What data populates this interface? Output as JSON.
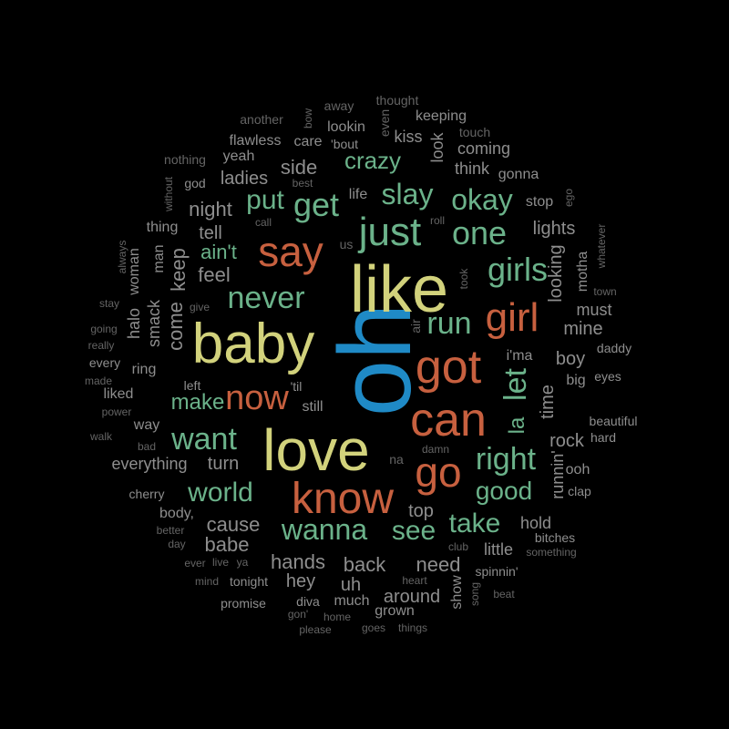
{
  "colors": {
    "background": "#000000",
    "blue": "#1f8ac6",
    "yellow": "#d2d27c",
    "orange": "#c7603f",
    "green": "#6bb28a",
    "gray": "#8e8e8e",
    "dark_gray": "#646464"
  },
  "words": [
    {
      "text": "oh",
      "tier": "blue"
    },
    {
      "text": "like",
      "tier": "yellow"
    },
    {
      "text": "baby",
      "tier": "yellow"
    },
    {
      "text": "love",
      "tier": "yellow"
    },
    {
      "text": "say",
      "tier": "orange"
    },
    {
      "text": "got",
      "tier": "orange"
    },
    {
      "text": "can",
      "tier": "orange"
    },
    {
      "text": "know",
      "tier": "orange"
    },
    {
      "text": "go",
      "tier": "orange"
    },
    {
      "text": "girl",
      "tier": "orange"
    },
    {
      "text": "now",
      "tier": "orange"
    },
    {
      "text": "let",
      "tier": "green"
    },
    {
      "text": "just",
      "tier": "green"
    },
    {
      "text": "never",
      "tier": "green"
    },
    {
      "text": "get",
      "tier": "green"
    },
    {
      "text": "put",
      "tier": "green"
    },
    {
      "text": "slay",
      "tier": "green"
    },
    {
      "text": "okay",
      "tier": "green"
    },
    {
      "text": "one",
      "tier": "green"
    },
    {
      "text": "girls",
      "tier": "green"
    },
    {
      "text": "run",
      "tier": "green"
    },
    {
      "text": "want",
      "tier": "green"
    },
    {
      "text": "right",
      "tier": "green"
    },
    {
      "text": "world",
      "tier": "green"
    },
    {
      "text": "wanna",
      "tier": "green"
    },
    {
      "text": "take",
      "tier": "green"
    },
    {
      "text": "good",
      "tier": "green"
    },
    {
      "text": "see",
      "tier": "green"
    },
    {
      "text": "make",
      "tier": "green"
    },
    {
      "text": "crazy",
      "tier": "green"
    },
    {
      "text": "ain't",
      "tier": "green"
    },
    {
      "text": "la",
      "tier": "green"
    },
    {
      "text": "side",
      "tier": "gray"
    },
    {
      "text": "night",
      "tier": "gray"
    },
    {
      "text": "tell",
      "tier": "gray"
    },
    {
      "text": "feel",
      "tier": "gray"
    },
    {
      "text": "keep",
      "tier": "gray"
    },
    {
      "text": "come",
      "tier": "gray"
    },
    {
      "text": "cause",
      "tier": "gray"
    },
    {
      "text": "babe",
      "tier": "gray"
    },
    {
      "text": "hands",
      "tier": "gray"
    },
    {
      "text": "back",
      "tier": "gray"
    },
    {
      "text": "need",
      "tier": "gray"
    },
    {
      "text": "turn",
      "tier": "gray"
    },
    {
      "text": "everything",
      "tier": "gray"
    },
    {
      "text": "ladies",
      "tier": "gray"
    },
    {
      "text": "rock",
      "tier": "gray"
    },
    {
      "text": "boy",
      "tier": "gray"
    },
    {
      "text": "time",
      "tier": "gray"
    },
    {
      "text": "mine",
      "tier": "gray"
    },
    {
      "text": "must",
      "tier": "gray"
    },
    {
      "text": "lights",
      "tier": "gray"
    },
    {
      "text": "looking",
      "tier": "gray"
    },
    {
      "text": "top",
      "tier": "gray"
    },
    {
      "text": "hold",
      "tier": "gray"
    },
    {
      "text": "around",
      "tier": "gray"
    },
    {
      "text": "uh",
      "tier": "gray"
    },
    {
      "text": "hey",
      "tier": "gray"
    },
    {
      "text": "little",
      "tier": "gray"
    },
    {
      "text": "smack",
      "tier": "gray"
    },
    {
      "text": "halo",
      "tier": "gray"
    },
    {
      "text": "man",
      "tier": "gray"
    },
    {
      "text": "woman",
      "tier": "gray"
    },
    {
      "text": "ring",
      "tier": "gray"
    },
    {
      "text": "way",
      "tier": "gray"
    },
    {
      "text": "think",
      "tier": "gray"
    },
    {
      "text": "coming",
      "tier": "gray"
    },
    {
      "text": "look",
      "tier": "gray"
    },
    {
      "text": "kiss",
      "tier": "gray"
    },
    {
      "text": "lookin",
      "tier": "gray"
    },
    {
      "text": "yeah",
      "tier": "gray"
    },
    {
      "text": "flawless",
      "tier": "gray"
    },
    {
      "text": "care",
      "tier": "gray"
    },
    {
      "text": "'bout",
      "tier": "gray"
    },
    {
      "text": "keeping",
      "tier": "gray"
    },
    {
      "text": "gonna",
      "tier": "gray"
    },
    {
      "text": "stop",
      "tier": "gray"
    },
    {
      "text": "life",
      "tier": "gray"
    },
    {
      "text": "god",
      "tier": "gray"
    },
    {
      "text": "thing",
      "tier": "gray"
    },
    {
      "text": "liked",
      "tier": "gray"
    },
    {
      "text": "every",
      "tier": "gray"
    },
    {
      "text": "i'ma",
      "tier": "gray"
    },
    {
      "text": "big",
      "tier": "gray"
    },
    {
      "text": "eyes",
      "tier": "gray"
    },
    {
      "text": "daddy",
      "tier": "gray"
    },
    {
      "text": "motha",
      "tier": "gray"
    },
    {
      "text": "runnin'",
      "tier": "gray"
    },
    {
      "text": "ooh",
      "tier": "gray"
    },
    {
      "text": "clap",
      "tier": "gray"
    },
    {
      "text": "beautiful",
      "tier": "gray"
    },
    {
      "text": "hard",
      "tier": "gray"
    },
    {
      "text": "still",
      "tier": "gray"
    },
    {
      "text": "'til",
      "tier": "gray"
    },
    {
      "text": "left",
      "tier": "gray"
    },
    {
      "text": "show",
      "tier": "gray"
    },
    {
      "text": "much",
      "tier": "gray"
    },
    {
      "text": "diva",
      "tier": "gray"
    },
    {
      "text": "spinnin'",
      "tier": "gray"
    },
    {
      "text": "bitches",
      "tier": "gray"
    },
    {
      "text": "body,",
      "tier": "gray"
    },
    {
      "text": "cherry",
      "tier": "gray"
    },
    {
      "text": "grown",
      "tier": "gray"
    },
    {
      "text": "tonight",
      "tier": "gray"
    },
    {
      "text": "promise",
      "tier": "gray"
    },
    {
      "text": "another",
      "tier": "dark"
    },
    {
      "text": "bow",
      "tier": "dark"
    },
    {
      "text": "away",
      "tier": "dark"
    },
    {
      "text": "thought",
      "tier": "dark"
    },
    {
      "text": "even",
      "tier": "dark"
    },
    {
      "text": "touch",
      "tier": "dark"
    },
    {
      "text": "nothing",
      "tier": "dark"
    },
    {
      "text": "without",
      "tier": "dark"
    },
    {
      "text": "best",
      "tier": "dark"
    },
    {
      "text": "call",
      "tier": "dark"
    },
    {
      "text": "roll",
      "tier": "dark"
    },
    {
      "text": "ego",
      "tier": "dark"
    },
    {
      "text": "whatever",
      "tier": "dark"
    },
    {
      "text": "always",
      "tier": "dark"
    },
    {
      "text": "us",
      "tier": "dark"
    },
    {
      "text": "took",
      "tier": "dark"
    },
    {
      "text": "town",
      "tier": "dark"
    },
    {
      "text": "stay",
      "tier": "dark"
    },
    {
      "text": "give",
      "tier": "dark"
    },
    {
      "text": "air",
      "tier": "dark"
    },
    {
      "text": "going",
      "tier": "dark"
    },
    {
      "text": "really",
      "tier": "dark"
    },
    {
      "text": "made",
      "tier": "dark"
    },
    {
      "text": "power",
      "tier": "dark"
    },
    {
      "text": "walk",
      "tier": "dark"
    },
    {
      "text": "bad",
      "tier": "dark"
    },
    {
      "text": "na",
      "tier": "dark"
    },
    {
      "text": "damn",
      "tier": "dark"
    },
    {
      "text": "better",
      "tier": "dark"
    },
    {
      "text": "day",
      "tier": "dark"
    },
    {
      "text": "ever",
      "tier": "dark"
    },
    {
      "text": "live",
      "tier": "dark"
    },
    {
      "text": "ya",
      "tier": "dark"
    },
    {
      "text": "mind",
      "tier": "dark"
    },
    {
      "text": "club",
      "tier": "dark"
    },
    {
      "text": "something",
      "tier": "dark"
    },
    {
      "text": "heart",
      "tier": "dark"
    },
    {
      "text": "song",
      "tier": "dark"
    },
    {
      "text": "beat",
      "tier": "dark"
    },
    {
      "text": "gon'",
      "tier": "dark"
    },
    {
      "text": "home",
      "tier": "dark"
    },
    {
      "text": "please",
      "tier": "dark"
    },
    {
      "text": "goes",
      "tier": "dark"
    },
    {
      "text": "things",
      "tier": "dark"
    }
  ]
}
